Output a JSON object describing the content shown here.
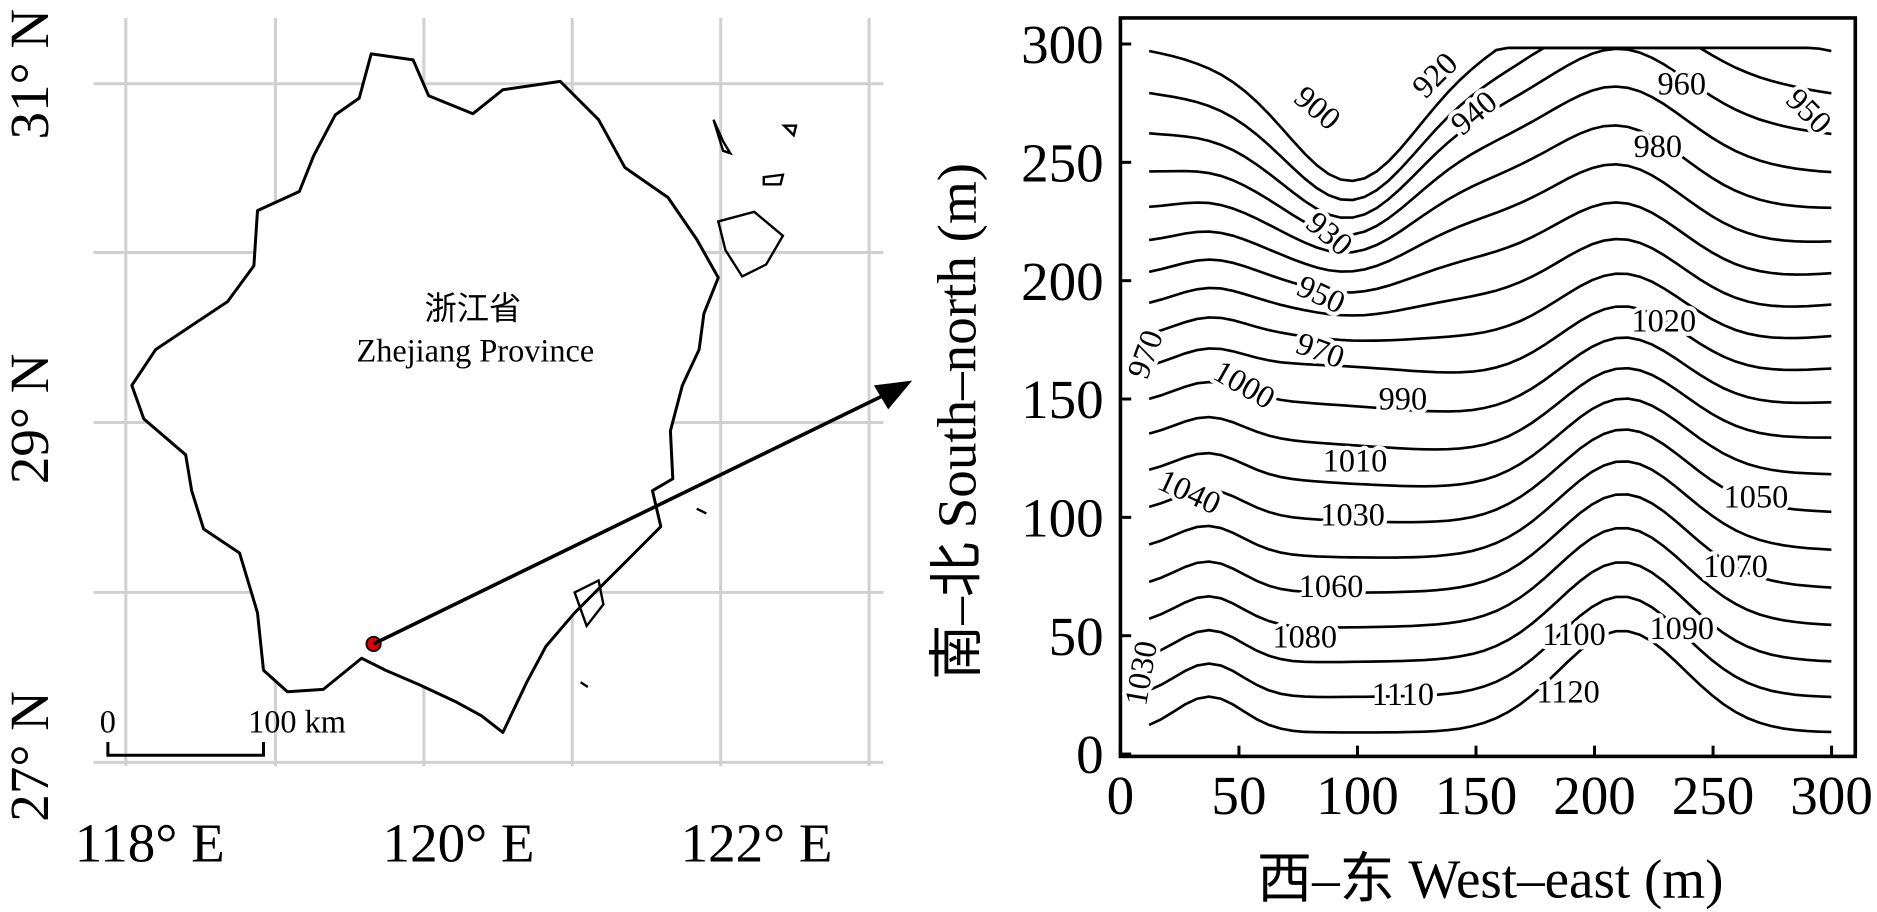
{
  "map": {
    "region_label_cn": "浙江省",
    "region_label_en": "Zhejiang Province",
    "latitude_labels": [
      "31° N",
      "29° N",
      "27° N"
    ],
    "longitude_labels": [
      "118° E",
      "120° E",
      "122° E"
    ],
    "scale_bar": {
      "start": "0",
      "end": "100 km"
    }
  },
  "contour_plot": {
    "x_label": "西–东 West–east (m)",
    "y_label": "南–北 South–north (m)",
    "xlim": [
      0,
      310
    ],
    "ylim": [
      -1,
      311
    ],
    "xticks": [
      0,
      50,
      100,
      150,
      200,
      250,
      300
    ],
    "yticks": [
      0,
      50,
      100,
      150,
      200,
      250,
      300
    ],
    "contour_labels": [
      900,
      920,
      940,
      960,
      950,
      980,
      930,
      950,
      1020,
      970,
      970,
      1000,
      990,
      1010,
      1040,
      1050,
      1030,
      1070,
      1060,
      1080,
      1100,
      1090,
      1030,
      1110,
      1120
    ]
  }
}
